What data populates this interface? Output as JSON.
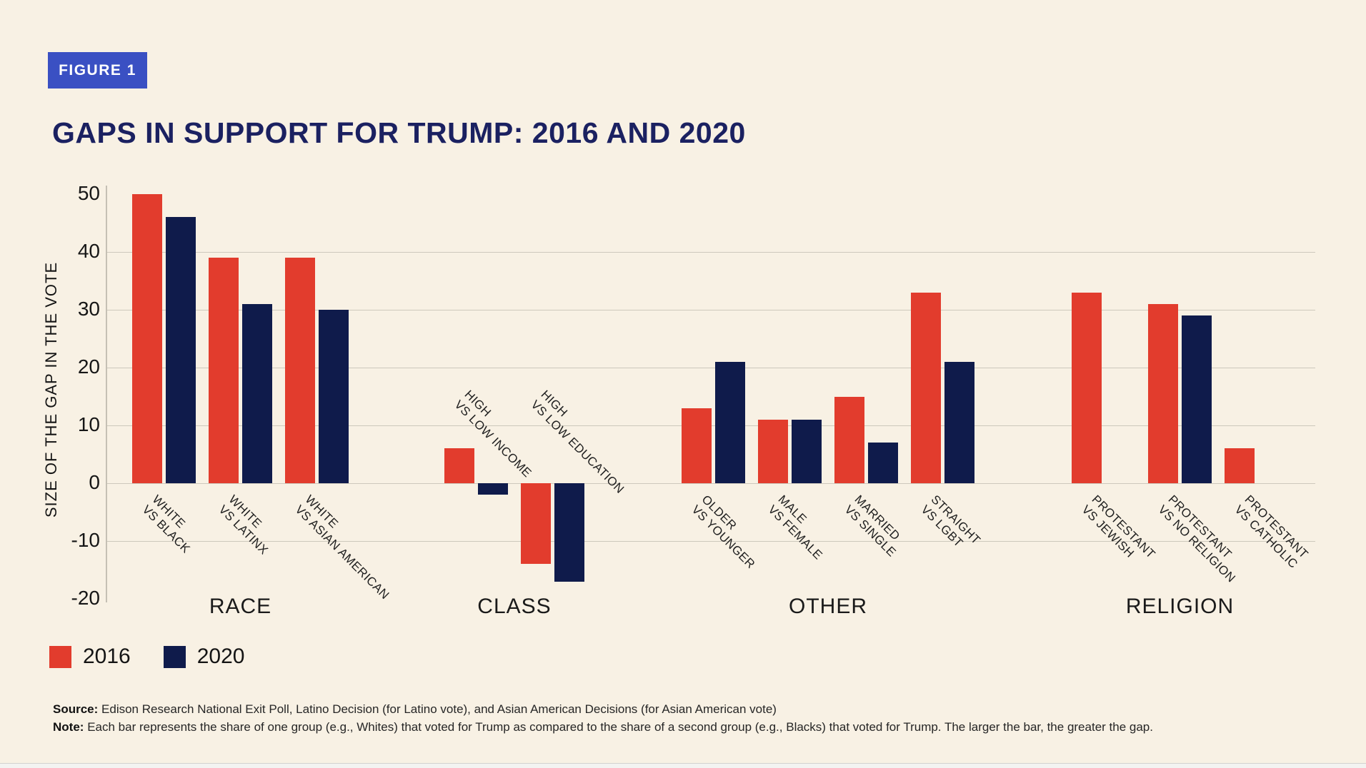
{
  "badge": {
    "label": "FIGURE 1"
  },
  "footer": {
    "source_label": "Source:",
    "source_text": "Edison Research National Exit Poll, Latino Decision (for Latino vote), and Asian American Decisions (for Asian American vote)",
    "note_label": "Note:",
    "note_text": "Each bar represents the share of one group (e.g., Whites) that voted for Trump as compared to the share of a second group (e.g., Blacks) that voted for Trump. The larger the bar, the greater the gap."
  },
  "chart_data": {
    "type": "bar",
    "title": "GAPS IN SUPPORT FOR TRUMP: 2016 AND 2020",
    "ylabel": "SIZE OF THE GAP IN THE VOTE",
    "xlabel": "",
    "ylim": [
      -20,
      50
    ],
    "yticks": [
      50,
      40,
      30,
      20,
      10,
      0,
      -10,
      -20
    ],
    "gridline_values": [
      40,
      30,
      20,
      10,
      0,
      -10
    ],
    "grid": true,
    "legend_position": "bottom-left",
    "series": [
      {
        "name": "2016",
        "color": "#e23c2d"
      },
      {
        "name": "2020",
        "color": "#0f1b4b"
      }
    ],
    "groups": [
      {
        "label": "RACE",
        "pairs": [
          {
            "label": "WHITE VS BLACK",
            "label_lines": [
              "WHITE",
              "VS BLACK"
            ],
            "values": {
              "2016": 50,
              "2020": 46
            }
          },
          {
            "label": "WHITE VS LATINX",
            "label_lines": [
              "WHITE",
              "VS LATINX"
            ],
            "values": {
              "2016": 39,
              "2020": 31
            }
          },
          {
            "label": "WHITE VS ASIAN AMERICAN",
            "label_lines": [
              "WHITE",
              "VS ASIAN AMERICAN"
            ],
            "values": {
              "2016": 39,
              "2020": 30
            }
          }
        ]
      },
      {
        "label": "CLASS",
        "pairs": [
          {
            "label": "HIGH VS LOW INCOME",
            "label_lines": [
              "HIGH",
              "VS LOW INCOME"
            ],
            "label_above": true,
            "values": {
              "2016": 6,
              "2020": -2
            }
          },
          {
            "label": "HIGH VS LOW EDUCATION",
            "label_lines": [
              "HIGH",
              "VS LOW EDUCATION"
            ],
            "label_above": true,
            "values": {
              "2016": -14,
              "2020": -17
            }
          }
        ]
      },
      {
        "label": "OTHER",
        "pairs": [
          {
            "label": "OLDER VS YOUNGER",
            "label_lines": [
              "OLDER",
              "VS YOUNGER"
            ],
            "values": {
              "2016": 13,
              "2020": 21
            }
          },
          {
            "label": "MALE VS FEMALE",
            "label_lines": [
              "MALE",
              "VS FEMALE"
            ],
            "values": {
              "2016": 11,
              "2020": 11
            }
          },
          {
            "label": "MARRIED VS SINGLE",
            "label_lines": [
              "MARRIED",
              "VS SINGLE"
            ],
            "values": {
              "2016": 15,
              "2020": 7
            }
          },
          {
            "label": "STRAIGHT VS LGBT",
            "label_lines": [
              "STRAIGHT",
              "VS LGBT"
            ],
            "values": {
              "2016": 33,
              "2020": 21
            }
          }
        ]
      },
      {
        "label": "RELIGION",
        "pairs": [
          {
            "label": "PROTESTANT VS JEWISH",
            "label_lines": [
              "PROTESTANT",
              "VS JEWISH"
            ],
            "values": {
              "2016": 33,
              "2020": null
            }
          },
          {
            "label": "PROTESTANT VS NO RELIGION",
            "label_lines": [
              "PROTESTANT",
              "VS NO RELIGION"
            ],
            "values": {
              "2016": 31,
              "2020": 29
            }
          },
          {
            "label": "PROTESTANT VS CATHOLIC",
            "label_lines": [
              "PROTESTANT",
              "VS CATHOLIC"
            ],
            "values": {
              "2016": 6,
              "2020": null
            }
          }
        ]
      }
    ]
  }
}
